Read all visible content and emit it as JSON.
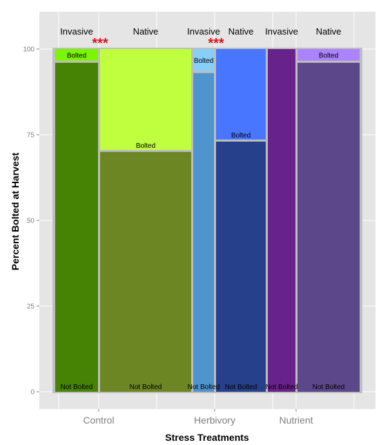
{
  "chart_data": {
    "type": "bar",
    "subtype": "stacked-mosaic",
    "title": "",
    "xlabel": "Stress Treatments",
    "ylabel": "Percent Bolted at Harvest",
    "ylim": [
      0,
      100
    ],
    "yticks": [
      0,
      25,
      50,
      75,
      100
    ],
    "grid": true,
    "legend": "none",
    "categories": [
      "Control",
      "Herbivory",
      "Nutrient"
    ],
    "segment_labels": {
      "bolted": "Bolted",
      "not_bolted": "Not Bolted"
    },
    "significance_marker": "***",
    "bars": [
      {
        "treatment": "Control",
        "group": "Invasive",
        "not_bolted": 96,
        "bolted": 4,
        "significance": "***",
        "colors": {
          "not_bolted": "#468305",
          "bolted": "#7cf500"
        }
      },
      {
        "treatment": "Control",
        "group": "Native",
        "not_bolted": 70,
        "bolted": 30,
        "significance": "",
        "colors": {
          "not_bolted": "#6b8623",
          "bolted": "#c0ff3e"
        }
      },
      {
        "treatment": "Herbivory",
        "group": "Invasive",
        "not_bolted": 93,
        "bolted": 7,
        "significance": "***",
        "colors": {
          "not_bolted": "#4f94cd",
          "bolted": "#87cefa"
        }
      },
      {
        "treatment": "Herbivory",
        "group": "Native",
        "not_bolted": 73,
        "bolted": 27,
        "significance": "",
        "colors": {
          "not_bolted": "#27408b",
          "bolted": "#4876ff"
        }
      },
      {
        "treatment": "Nutrient",
        "group": "Invasive",
        "not_bolted": 100,
        "bolted": 0,
        "significance": "",
        "colors": {
          "not_bolted": "#68228b",
          "bolted": "#9b30ff"
        }
      },
      {
        "treatment": "Nutrient",
        "group": "Native",
        "not_bolted": 96,
        "bolted": 4,
        "significance": "",
        "colors": {
          "not_bolted": "#5d478b",
          "bolted": "#ab82ff"
        }
      }
    ]
  },
  "colors": {
    "panel_background": "#e5e5e5",
    "grid_major": "#ffffff",
    "separator": "#bebebe",
    "significance": "#e3111b"
  }
}
